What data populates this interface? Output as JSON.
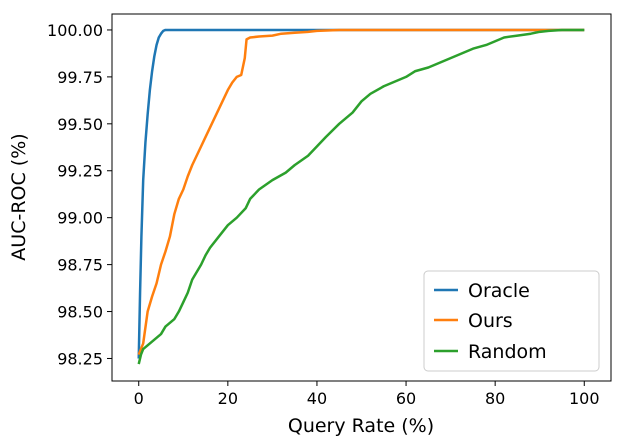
{
  "chart_data": {
    "type": "line",
    "xlabel": "Query Rate (%)",
    "ylabel": "AUC-ROC (%)",
    "xlim": [
      -6,
      106
    ],
    "ylim": [
      98.13,
      100.085
    ],
    "x_ticks": [
      0,
      20,
      40,
      60,
      80,
      100
    ],
    "x_tick_labels": [
      "0",
      "20",
      "40",
      "60",
      "80",
      "100"
    ],
    "y_ticks": [
      98.25,
      98.5,
      98.75,
      99.0,
      99.25,
      99.5,
      99.75,
      100.0
    ],
    "y_tick_labels": [
      "98.25",
      "98.50",
      "98.75",
      "99.00",
      "99.25",
      "99.50",
      "99.75",
      "100.00"
    ],
    "grid": false,
    "legend_position": "lower-right",
    "series": [
      {
        "name": "Oracle",
        "color": "#1f77b4",
        "x": [
          0,
          0.3,
          0.6,
          1,
          1.5,
          2,
          2.5,
          3,
          3.5,
          4,
          4.5,
          5,
          5.5,
          6,
          10,
          20,
          40,
          60,
          80,
          100
        ],
        "y": [
          98.25,
          98.6,
          98.9,
          99.2,
          99.4,
          99.55,
          99.68,
          99.78,
          99.86,
          99.92,
          99.96,
          99.98,
          99.995,
          100.0,
          100.0,
          100.0,
          100.0,
          100.0,
          100.0,
          100.0
        ]
      },
      {
        "name": "Ours",
        "color": "#ff7f0e",
        "x": [
          0,
          0.5,
          1,
          2,
          3,
          4,
          5,
          6,
          7,
          8,
          9,
          10,
          11,
          12,
          13,
          14,
          15,
          16,
          17,
          18,
          19,
          20,
          21,
          22,
          23,
          23.8,
          24.2,
          25,
          27,
          30,
          32,
          35,
          38,
          40,
          45,
          50,
          60,
          70,
          80,
          90,
          100
        ],
        "y": [
          98.27,
          98.3,
          98.33,
          98.5,
          98.58,
          98.65,
          98.75,
          98.82,
          98.9,
          99.02,
          99.1,
          99.15,
          99.22,
          99.28,
          99.33,
          99.38,
          99.43,
          99.48,
          99.53,
          99.58,
          99.63,
          99.68,
          99.72,
          99.75,
          99.76,
          99.85,
          99.95,
          99.96,
          99.965,
          99.97,
          99.98,
          99.985,
          99.99,
          99.995,
          100.0,
          100.0,
          100.0,
          100.0,
          100.0,
          100.0,
          100.0
        ]
      },
      {
        "name": "Random",
        "color": "#2ca02c",
        "x": [
          0,
          0.5,
          1,
          2,
          3,
          5,
          6,
          8,
          9,
          10,
          11,
          12,
          14,
          15,
          16,
          18,
          20,
          22,
          24,
          25,
          27,
          30,
          33,
          35,
          38,
          40,
          42,
          45,
          48,
          50,
          52,
          55,
          58,
          60,
          62,
          65,
          68,
          70,
          72,
          75,
          78,
          80,
          82,
          85,
          88,
          90,
          92,
          95,
          98,
          100
        ],
        "y": [
          98.22,
          98.27,
          98.3,
          98.32,
          98.34,
          98.38,
          98.42,
          98.46,
          98.5,
          98.55,
          98.6,
          98.67,
          98.75,
          98.8,
          98.84,
          98.9,
          98.96,
          99.0,
          99.05,
          99.1,
          99.15,
          99.2,
          99.24,
          99.28,
          99.33,
          99.38,
          99.43,
          99.5,
          99.56,
          99.62,
          99.66,
          99.7,
          99.73,
          99.75,
          99.78,
          99.8,
          99.83,
          99.85,
          99.87,
          99.9,
          99.92,
          99.94,
          99.96,
          99.97,
          99.98,
          99.99,
          99.995,
          100.0,
          100.0,
          100.0
        ]
      }
    ]
  }
}
